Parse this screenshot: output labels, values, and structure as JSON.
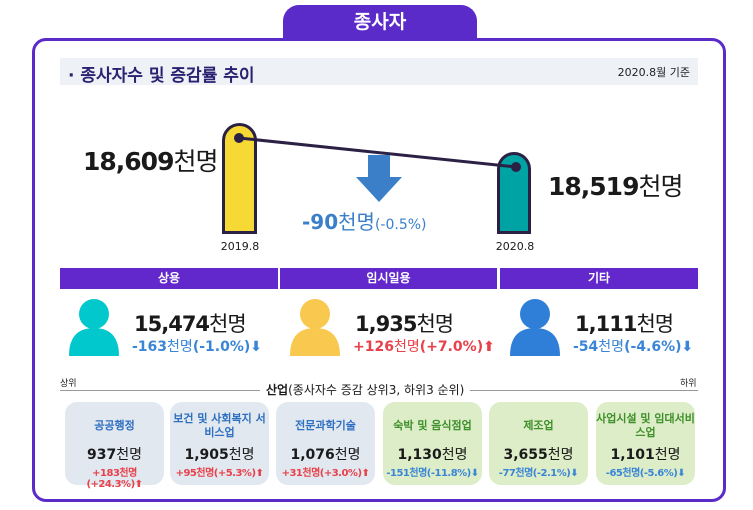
{
  "tab": "종사자",
  "header": {
    "title": "· 종사자수 및 증감률 추이",
    "date": "2020.8월 기준"
  },
  "trend": {
    "left": {
      "value": "18,609",
      "unit": "천명",
      "year": "2019.8",
      "color": "#f7d935"
    },
    "right": {
      "value": "18,519",
      "unit": "천명",
      "year": "2020.8",
      "color": "#00a3a3"
    },
    "change": {
      "value": "-90",
      "unit": "천명",
      "pct": "(-0.5%)",
      "icon": "arrow-down-icon",
      "color": "#3a7fc8"
    }
  },
  "categories": [
    {
      "label": "상용",
      "value": "15,474",
      "unit": "천명",
      "change": "-163",
      "change_unit": "천명",
      "pct": "(-1.0%)",
      "dir": "down",
      "color": "#00c8cc"
    },
    {
      "label": "임시일용",
      "value": "1,935",
      "unit": "천명",
      "change": "+126",
      "change_unit": "천명",
      "pct": "(+7.0%)",
      "dir": "up",
      "color": "#f9c84e"
    },
    {
      "label": "기타",
      "value": "1,111",
      "unit": "천명",
      "change": "-54",
      "change_unit": "천명",
      "pct": "(-4.6%)",
      "dir": "down",
      "color": "#2f7fd8"
    }
  ],
  "industry": {
    "title": "산업",
    "subtitle": "(종사자수 증감 상위3, 하위3 순위)",
    "top_label": "상위",
    "bottom_label": "하위",
    "cards": [
      {
        "name": "공공행정",
        "value": "937",
        "unit": "천명",
        "change": "+183천명(+24.3%)",
        "dir": "up"
      },
      {
        "name": "보건 및 사회복지 서비스업",
        "value": "1,905",
        "unit": "천명",
        "change": "+95천명(+5.3%)",
        "dir": "up"
      },
      {
        "name": "전문과학기술",
        "value": "1,076",
        "unit": "천명",
        "change": "+31천명(+3.0%)",
        "dir": "up"
      },
      {
        "name": "숙박 및 음식점업",
        "value": "1,130",
        "unit": "천명",
        "change": "-151천명(-11.8%)",
        "dir": "down"
      },
      {
        "name": "제조업",
        "value": "3,655",
        "unit": "천명",
        "change": "-77천명(-2.1%)",
        "dir": "down"
      },
      {
        "name": "사업시설 및 임대서비스업",
        "value": "1,101",
        "unit": "천명",
        "change": "-65천명(-5.6%)",
        "dir": "down"
      }
    ]
  }
}
